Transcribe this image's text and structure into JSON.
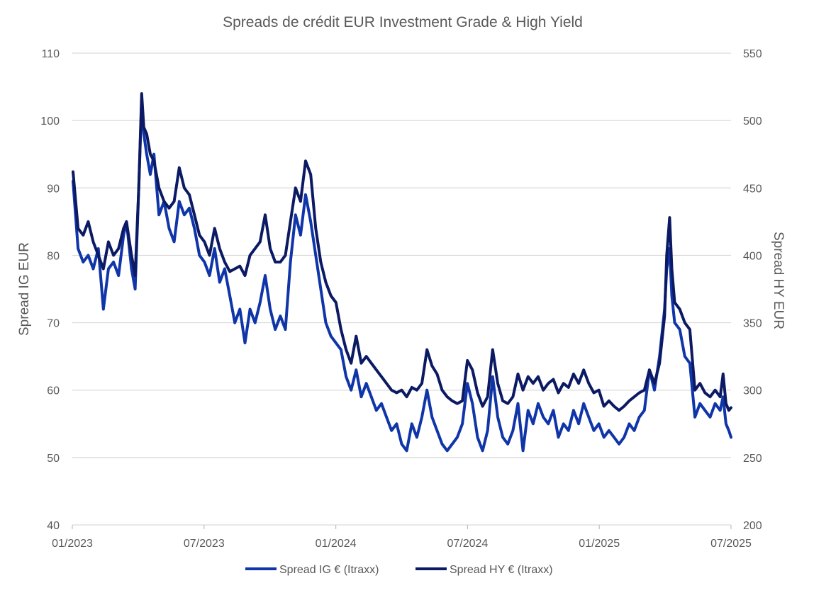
{
  "chart_data": {
    "type": "line",
    "title": "Spreads de crédit EUR Investment Grade & High Yield",
    "y_left_label": "Spread IG EUR",
    "y_right_label": "Spread HY EUR",
    "y_left_lim": [
      40,
      110
    ],
    "y_right_lim": [
      200,
      550
    ],
    "y_left_ticks": [
      "40",
      "50",
      "60",
      "70",
      "80",
      "90",
      "100",
      "110"
    ],
    "y_right_ticks": [
      "200",
      "250",
      "300",
      "350",
      "400",
      "450",
      "500",
      "550"
    ],
    "x_ticks": [
      "01/2023",
      "07/2023",
      "01/2024",
      "07/2024",
      "01/2025",
      "07/2025"
    ],
    "x_range": [
      "2023-01-01",
      "2025-07-01"
    ],
    "grid": true,
    "legend_position": "bottom",
    "series": [
      {
        "name": "Spread IG € (Itraxx)",
        "axis": "left",
        "color": "#0f35a8",
        "points": [
          [
            "2023-01-02",
            91
          ],
          [
            "2023-01-09",
            81
          ],
          [
            "2023-01-16",
            79
          ],
          [
            "2023-01-23",
            80
          ],
          [
            "2023-01-30",
            78
          ],
          [
            "2023-02-06",
            81
          ],
          [
            "2023-02-13",
            72
          ],
          [
            "2023-02-20",
            78
          ],
          [
            "2023-02-27",
            79
          ],
          [
            "2023-03-06",
            77
          ],
          [
            "2023-03-13",
            83
          ],
          [
            "2023-03-17",
            85
          ],
          [
            "2023-03-24",
            78
          ],
          [
            "2023-03-29",
            75
          ],
          [
            "2023-04-03",
            90
          ],
          [
            "2023-04-07",
            103
          ],
          [
            "2023-04-10",
            98
          ],
          [
            "2023-04-14",
            95
          ],
          [
            "2023-04-19",
            92
          ],
          [
            "2023-04-24",
            95
          ],
          [
            "2023-05-01",
            86
          ],
          [
            "2023-05-08",
            88
          ],
          [
            "2023-05-15",
            84
          ],
          [
            "2023-05-22",
            82
          ],
          [
            "2023-05-29",
            88
          ],
          [
            "2023-06-05",
            86
          ],
          [
            "2023-06-12",
            87
          ],
          [
            "2023-06-19",
            84
          ],
          [
            "2023-06-26",
            80
          ],
          [
            "2023-07-03",
            79
          ],
          [
            "2023-07-10",
            77
          ],
          [
            "2023-07-17",
            81
          ],
          [
            "2023-07-24",
            76
          ],
          [
            "2023-07-31",
            78
          ],
          [
            "2023-08-07",
            74
          ],
          [
            "2023-08-14",
            70
          ],
          [
            "2023-08-21",
            72
          ],
          [
            "2023-08-28",
            67
          ],
          [
            "2023-09-04",
            72
          ],
          [
            "2023-09-11",
            70
          ],
          [
            "2023-09-18",
            73
          ],
          [
            "2023-09-25",
            77
          ],
          [
            "2023-10-02",
            72
          ],
          [
            "2023-10-09",
            69
          ],
          [
            "2023-10-16",
            71
          ],
          [
            "2023-10-23",
            69
          ],
          [
            "2023-10-30",
            79
          ],
          [
            "2023-11-06",
            86
          ],
          [
            "2023-11-13",
            83
          ],
          [
            "2023-11-20",
            89
          ],
          [
            "2023-11-27",
            85
          ],
          [
            "2023-12-04",
            80
          ],
          [
            "2023-12-11",
            75
          ],
          [
            "2023-12-18",
            70
          ],
          [
            "2023-12-25",
            68
          ],
          [
            "2024-01-01",
            67
          ],
          [
            "2024-01-08",
            66
          ],
          [
            "2024-01-15",
            62
          ],
          [
            "2024-01-22",
            60
          ],
          [
            "2024-01-29",
            63
          ],
          [
            "2024-02-05",
            59
          ],
          [
            "2024-02-12",
            61
          ],
          [
            "2024-02-19",
            59
          ],
          [
            "2024-02-26",
            57
          ],
          [
            "2024-03-04",
            58
          ],
          [
            "2024-03-11",
            56
          ],
          [
            "2024-03-18",
            54
          ],
          [
            "2024-03-25",
            55
          ],
          [
            "2024-04-01",
            52
          ],
          [
            "2024-04-08",
            51
          ],
          [
            "2024-04-15",
            55
          ],
          [
            "2024-04-22",
            53
          ],
          [
            "2024-04-29",
            56
          ],
          [
            "2024-05-06",
            60
          ],
          [
            "2024-05-13",
            56
          ],
          [
            "2024-05-20",
            54
          ],
          [
            "2024-05-27",
            52
          ],
          [
            "2024-06-03",
            51
          ],
          [
            "2024-06-10",
            52
          ],
          [
            "2024-06-17",
            53
          ],
          [
            "2024-06-24",
            55
          ],
          [
            "2024-07-01",
            61
          ],
          [
            "2024-07-08",
            58
          ],
          [
            "2024-07-15",
            53
          ],
          [
            "2024-07-22",
            51
          ],
          [
            "2024-07-29",
            54
          ],
          [
            "2024-08-05",
            62
          ],
          [
            "2024-08-12",
            56
          ],
          [
            "2024-08-19",
            53
          ],
          [
            "2024-08-26",
            52
          ],
          [
            "2024-09-02",
            54
          ],
          [
            "2024-09-09",
            58
          ],
          [
            "2024-09-16",
            51
          ],
          [
            "2024-09-23",
            57
          ],
          [
            "2024-09-30",
            55
          ],
          [
            "2024-10-07",
            58
          ],
          [
            "2024-10-14",
            56
          ],
          [
            "2024-10-21",
            55
          ],
          [
            "2024-10-28",
            57
          ],
          [
            "2024-11-04",
            53
          ],
          [
            "2024-11-11",
            55
          ],
          [
            "2024-11-18",
            54
          ],
          [
            "2024-11-25",
            57
          ],
          [
            "2024-12-02",
            55
          ],
          [
            "2024-12-09",
            58
          ],
          [
            "2024-12-16",
            56
          ],
          [
            "2024-12-23",
            54
          ],
          [
            "2024-12-30",
            55
          ],
          [
            "2025-01-06",
            53
          ],
          [
            "2025-01-13",
            54
          ],
          [
            "2025-01-20",
            53
          ],
          [
            "2025-01-27",
            52
          ],
          [
            "2025-02-03",
            53
          ],
          [
            "2025-02-10",
            55
          ],
          [
            "2025-02-17",
            54
          ],
          [
            "2025-02-24",
            56
          ],
          [
            "2025-03-03",
            57
          ],
          [
            "2025-03-10",
            63
          ],
          [
            "2025-03-17",
            60
          ],
          [
            "2025-03-24",
            65
          ],
          [
            "2025-03-31",
            72
          ],
          [
            "2025-04-03",
            78
          ],
          [
            "2025-04-07",
            81
          ],
          [
            "2025-04-10",
            74
          ],
          [
            "2025-04-14",
            70
          ],
          [
            "2025-04-21",
            69
          ],
          [
            "2025-04-28",
            65
          ],
          [
            "2025-05-05",
            64
          ],
          [
            "2025-05-12",
            56
          ],
          [
            "2025-05-19",
            58
          ],
          [
            "2025-05-26",
            57
          ],
          [
            "2025-06-02",
            56
          ],
          [
            "2025-06-09",
            58
          ],
          [
            "2025-06-16",
            57
          ],
          [
            "2025-06-20",
            59
          ],
          [
            "2025-06-24",
            55
          ],
          [
            "2025-06-28",
            54
          ],
          [
            "2025-07-01",
            53
          ]
        ]
      },
      {
        "name": "Spread HY € (Itraxx)",
        "axis": "right",
        "color": "#0b1a63",
        "points": [
          [
            "2023-01-02",
            462
          ],
          [
            "2023-01-09",
            420
          ],
          [
            "2023-01-16",
            415
          ],
          [
            "2023-01-23",
            425
          ],
          [
            "2023-01-30",
            410
          ],
          [
            "2023-02-06",
            400
          ],
          [
            "2023-02-13",
            390
          ],
          [
            "2023-02-20",
            410
          ],
          [
            "2023-02-27",
            400
          ],
          [
            "2023-03-06",
            405
          ],
          [
            "2023-03-13",
            420
          ],
          [
            "2023-03-17",
            425
          ],
          [
            "2023-03-24",
            400
          ],
          [
            "2023-03-29",
            385
          ],
          [
            "2023-04-03",
            450
          ],
          [
            "2023-04-07",
            520
          ],
          [
            "2023-04-10",
            495
          ],
          [
            "2023-04-14",
            490
          ],
          [
            "2023-04-19",
            475
          ],
          [
            "2023-04-24",
            470
          ],
          [
            "2023-05-01",
            450
          ],
          [
            "2023-05-08",
            440
          ],
          [
            "2023-05-15",
            435
          ],
          [
            "2023-05-22",
            440
          ],
          [
            "2023-05-29",
            465
          ],
          [
            "2023-06-05",
            450
          ],
          [
            "2023-06-12",
            445
          ],
          [
            "2023-06-19",
            430
          ],
          [
            "2023-06-26",
            415
          ],
          [
            "2023-07-03",
            410
          ],
          [
            "2023-07-10",
            400
          ],
          [
            "2023-07-17",
            420
          ],
          [
            "2023-07-24",
            405
          ],
          [
            "2023-07-31",
            395
          ],
          [
            "2023-08-07",
            388
          ],
          [
            "2023-08-14",
            390
          ],
          [
            "2023-08-21",
            392
          ],
          [
            "2023-08-28",
            385
          ],
          [
            "2023-09-04",
            400
          ],
          [
            "2023-09-11",
            405
          ],
          [
            "2023-09-18",
            410
          ],
          [
            "2023-09-25",
            430
          ],
          [
            "2023-10-02",
            405
          ],
          [
            "2023-10-09",
            395
          ],
          [
            "2023-10-16",
            395
          ],
          [
            "2023-10-23",
            400
          ],
          [
            "2023-10-30",
            425
          ],
          [
            "2023-11-06",
            450
          ],
          [
            "2023-11-13",
            440
          ],
          [
            "2023-11-20",
            470
          ],
          [
            "2023-11-27",
            460
          ],
          [
            "2023-12-04",
            420
          ],
          [
            "2023-12-11",
            395
          ],
          [
            "2023-12-18",
            380
          ],
          [
            "2023-12-25",
            370
          ],
          [
            "2024-01-01",
            365
          ],
          [
            "2024-01-08",
            345
          ],
          [
            "2024-01-15",
            330
          ],
          [
            "2024-01-22",
            320
          ],
          [
            "2024-01-29",
            340
          ],
          [
            "2024-02-05",
            320
          ],
          [
            "2024-02-12",
            325
          ],
          [
            "2024-02-19",
            320
          ],
          [
            "2024-02-26",
            315
          ],
          [
            "2024-03-04",
            310
          ],
          [
            "2024-03-11",
            305
          ],
          [
            "2024-03-18",
            300
          ],
          [
            "2024-03-25",
            298
          ],
          [
            "2024-04-01",
            300
          ],
          [
            "2024-04-08",
            295
          ],
          [
            "2024-04-15",
            302
          ],
          [
            "2024-04-22",
            300
          ],
          [
            "2024-04-29",
            305
          ],
          [
            "2024-05-06",
            330
          ],
          [
            "2024-05-13",
            318
          ],
          [
            "2024-05-20",
            312
          ],
          [
            "2024-05-27",
            300
          ],
          [
            "2024-06-03",
            295
          ],
          [
            "2024-06-10",
            292
          ],
          [
            "2024-06-17",
            290
          ],
          [
            "2024-06-24",
            292
          ],
          [
            "2024-07-01",
            322
          ],
          [
            "2024-07-08",
            315
          ],
          [
            "2024-07-15",
            298
          ],
          [
            "2024-07-22",
            288
          ],
          [
            "2024-07-29",
            295
          ],
          [
            "2024-08-05",
            330
          ],
          [
            "2024-08-12",
            305
          ],
          [
            "2024-08-19",
            292
          ],
          [
            "2024-08-26",
            290
          ],
          [
            "2024-09-02",
            295
          ],
          [
            "2024-09-09",
            312
          ],
          [
            "2024-09-16",
            300
          ],
          [
            "2024-09-23",
            310
          ],
          [
            "2024-09-30",
            305
          ],
          [
            "2024-10-07",
            310
          ],
          [
            "2024-10-14",
            300
          ],
          [
            "2024-10-21",
            305
          ],
          [
            "2024-10-28",
            308
          ],
          [
            "2024-11-04",
            298
          ],
          [
            "2024-11-11",
            305
          ],
          [
            "2024-11-18",
            302
          ],
          [
            "2024-11-25",
            312
          ],
          [
            "2024-12-02",
            305
          ],
          [
            "2024-12-09",
            315
          ],
          [
            "2024-12-16",
            305
          ],
          [
            "2024-12-23",
            298
          ],
          [
            "2024-12-30",
            300
          ],
          [
            "2025-01-06",
            288
          ],
          [
            "2025-01-13",
            292
          ],
          [
            "2025-01-20",
            288
          ],
          [
            "2025-01-27",
            285
          ],
          [
            "2025-02-03",
            288
          ],
          [
            "2025-02-10",
            292
          ],
          [
            "2025-02-17",
            295
          ],
          [
            "2025-02-24",
            298
          ],
          [
            "2025-03-03",
            300
          ],
          [
            "2025-03-10",
            315
          ],
          [
            "2025-03-17",
            305
          ],
          [
            "2025-03-24",
            320
          ],
          [
            "2025-03-31",
            355
          ],
          [
            "2025-04-03",
            400
          ],
          [
            "2025-04-07",
            428
          ],
          [
            "2025-04-10",
            390
          ],
          [
            "2025-04-14",
            365
          ],
          [
            "2025-04-21",
            360
          ],
          [
            "2025-04-28",
            350
          ],
          [
            "2025-05-05",
            345
          ],
          [
            "2025-05-12",
            300
          ],
          [
            "2025-05-19",
            305
          ],
          [
            "2025-05-26",
            298
          ],
          [
            "2025-06-02",
            295
          ],
          [
            "2025-06-09",
            300
          ],
          [
            "2025-06-16",
            295
          ],
          [
            "2025-06-20",
            312
          ],
          [
            "2025-06-24",
            290
          ],
          [
            "2025-06-28",
            285
          ],
          [
            "2025-07-01",
            287
          ]
        ]
      }
    ]
  }
}
